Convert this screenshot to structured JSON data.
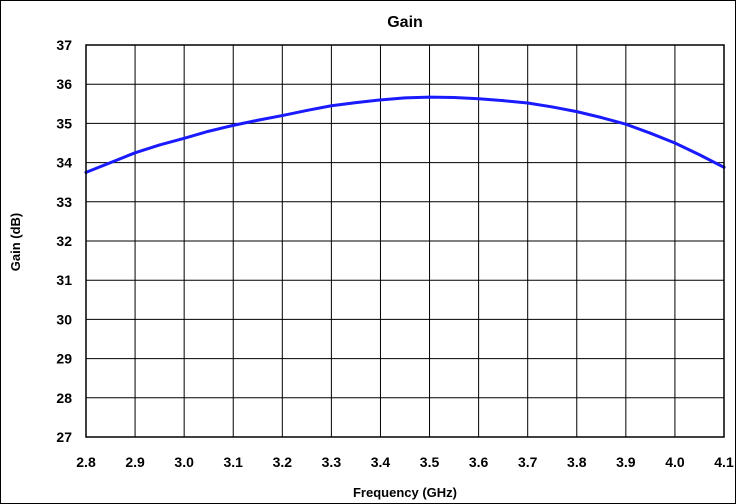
{
  "chart_data": {
    "type": "line",
    "title": "Gain",
    "xlabel": "Frequency (GHz)",
    "ylabel": "Gain (dB)",
    "xlim": [
      2.8,
      4.1
    ],
    "ylim": [
      27,
      37
    ],
    "x_ticks": [
      "2.8",
      "2.9",
      "3.0",
      "3.1",
      "3.2",
      "3.3",
      "3.4",
      "3.5",
      "3.6",
      "3.7",
      "3.8",
      "3.9",
      "4.0",
      "4.1"
    ],
    "y_ticks": [
      "27",
      "28",
      "29",
      "30",
      "31",
      "32",
      "33",
      "34",
      "35",
      "36",
      "37"
    ],
    "grid": true,
    "legend": "none",
    "series": [
      {
        "color": "#1a1aff",
        "x": [
          2.8,
          2.85,
          2.9,
          2.95,
          3.0,
          3.05,
          3.1,
          3.15,
          3.2,
          3.25,
          3.3,
          3.35,
          3.4,
          3.45,
          3.5,
          3.55,
          3.6,
          3.65,
          3.7,
          3.75,
          3.8,
          3.85,
          3.9,
          3.95,
          4.0,
          4.05,
          4.1
        ],
        "y": [
          33.75,
          34.0,
          34.25,
          34.45,
          34.62,
          34.8,
          34.95,
          35.08,
          35.2,
          35.33,
          35.45,
          35.53,
          35.6,
          35.65,
          35.67,
          35.66,
          35.63,
          35.58,
          35.52,
          35.42,
          35.3,
          35.15,
          34.98,
          34.75,
          34.5,
          34.2,
          33.88
        ]
      }
    ]
  }
}
